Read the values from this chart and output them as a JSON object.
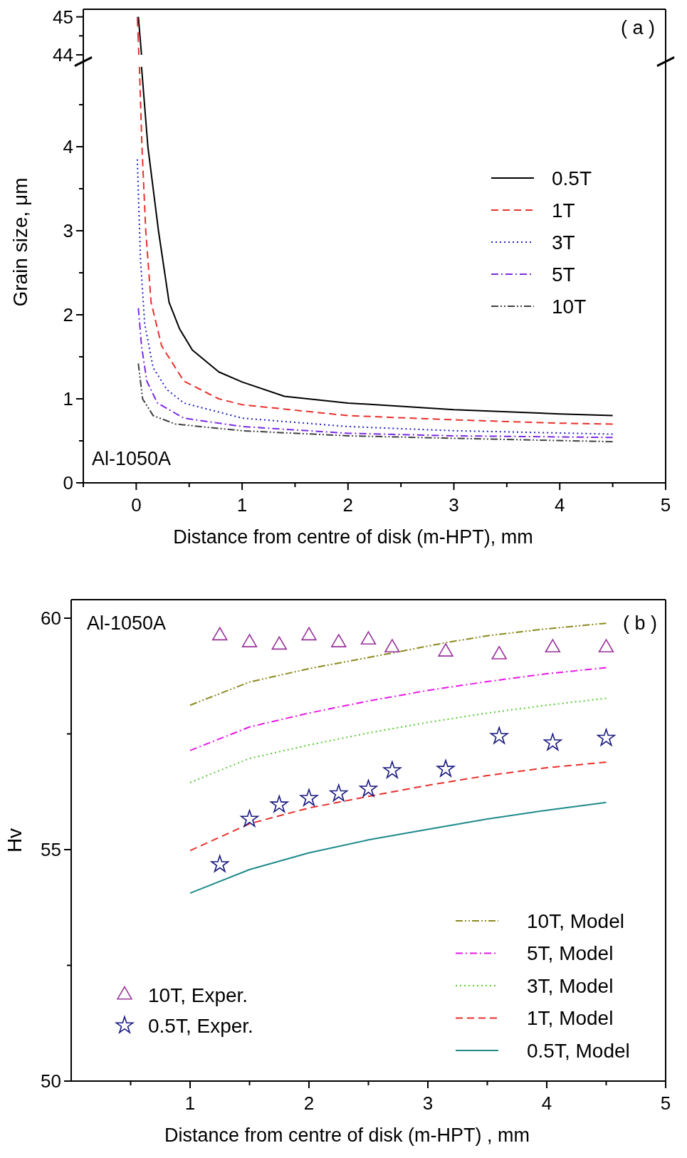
{
  "chart_data": [
    {
      "type": "line",
      "xlim": [
        -0.5,
        5
      ],
      "ylim": [
        43.85,
        45.2
      ],
      "yticks": [
        44,
        {
          "value": 44.5,
          "label": null
        },
        45
      ],
      "tick_labels": "y",
      "annotations": [
        "( a )"
      ],
      "series": [
        {
          "color": "#000000",
          "line_style": "solid",
          "x": [
            0.02,
            0.05
          ],
          "values": [
            45,
            44
          ]
        },
        {
          "color": "#e8312d",
          "line_style": "dashed",
          "x": [
            0.01,
            0.025
          ],
          "values": [
            45,
            44
          ]
        }
      ]
    },
    {
      "type": "line",
      "xlim": [
        -0.5,
        5
      ],
      "ylim": [
        0,
        5
      ],
      "xticks": [
        {
          "value": -0.5,
          "label": null
        },
        0,
        {
          "value": 0.5,
          "label": null
        },
        1,
        {
          "value": 1.5,
          "label": null
        },
        2,
        {
          "value": 2.5,
          "label": null
        },
        3,
        {
          "value": 3.5,
          "label": null
        },
        4,
        {
          "value": 4.5,
          "label": null
        },
        5
      ],
      "yticks": [
        0,
        {
          "value": 0.5,
          "label": null
        },
        1,
        {
          "value": 1.5,
          "label": null
        },
        2,
        {
          "value": 2.5,
          "label": null
        },
        3,
        {
          "value": 3.5,
          "label": null
        },
        4,
        {
          "value": 4.5,
          "label": null
        }
      ],
      "xlabel": "Distance from centre of disk (m-HPT), mm",
      "ylabel": "Grain size, μm",
      "legend": "top right",
      "annotations": [
        "Al-1050A"
      ],
      "series": [
        {
          "name": "0.5T",
          "color": "#000000",
          "line_style": "solid",
          "x": [
            0.05,
            0.11,
            0.21,
            0.31,
            0.41,
            0.53,
            0.78,
            1,
            1.4,
            2,
            3,
            4,
            4.5
          ],
          "values": [
            4.95,
            4,
            3,
            2.15,
            1.83,
            1.58,
            1.32,
            1.2,
            1.03,
            0.95,
            0.87,
            0.82,
            0.8
          ]
        },
        {
          "name": "1T",
          "color": "#e8312d",
          "line_style": "dashed",
          "x": [
            0.03,
            0.054,
            0.09,
            0.14,
            0.24,
            0.45,
            0.78,
            1,
            2,
            3,
            4,
            4.5
          ],
          "values": [
            4.95,
            4,
            3,
            2.15,
            1.63,
            1.21,
            1,
            0.93,
            0.8,
            0.75,
            0.71,
            0.7
          ]
        },
        {
          "name": "3T",
          "color": "#2020c0",
          "line_style": "dotted",
          "x": [
            0.01,
            0.04,
            0.08,
            0.16,
            0.29,
            0.45,
            1,
            2,
            3,
            4.5
          ],
          "values": [
            3.85,
            2.66,
            1.89,
            1.37,
            1.11,
            0.95,
            0.77,
            0.67,
            0.62,
            0.58
          ]
        },
        {
          "name": "5T",
          "color": "#7a2be2",
          "line_style": "dashdot",
          "x": [
            0.02,
            0.05,
            0.1,
            0.2,
            0.45,
            1,
            2,
            3,
            4.5
          ],
          "values": [
            2.08,
            1.63,
            1.21,
            0.95,
            0.77,
            0.67,
            0.59,
            0.56,
            0.54
          ]
        },
        {
          "name": "10T",
          "color": "#404040",
          "line_style": "dashdotdot",
          "x": [
            0.02,
            0.06,
            0.16,
            0.37,
            1,
            2,
            3,
            4.5
          ],
          "values": [
            1.42,
            1,
            0.8,
            0.7,
            0.62,
            0.56,
            0.53,
            0.49
          ]
        }
      ]
    },
    {
      "type": "line",
      "xlim": [
        0,
        5
      ],
      "ylim": [
        50,
        60.4
      ],
      "xticks": [
        {
          "value": 0.5,
          "label": null
        },
        1,
        {
          "value": 1.5,
          "label": null
        },
        2,
        {
          "value": 2.5,
          "label": null
        },
        3,
        {
          "value": 3.5,
          "label": null
        },
        4,
        {
          "value": 4.5,
          "label": null
        },
        5
      ],
      "yticks": [
        50,
        {
          "value": 52.5,
          "label": null
        },
        55,
        {
          "value": 57.5,
          "label": null
        },
        60
      ],
      "xlabel": "Distance from centre of disk (m-HPT) , mm",
      "ylabel": "Hv",
      "legend": "bottom right",
      "annotations": [
        "Al-1050A",
        "( b )"
      ],
      "series": [
        {
          "name": "10T, Model",
          "color": "#8c8a1e",
          "line_style": "dashdotdot",
          "x": [
            1,
            1.5,
            2,
            2.5,
            3.15,
            3.5,
            4,
            4.5
          ],
          "values": [
            58.12,
            58.62,
            58.91,
            59.15,
            59.47,
            59.62,
            59.77,
            59.89
          ]
        },
        {
          "name": "5T, Model",
          "color": "#e619e6",
          "line_style": "dashdot",
          "x": [
            1,
            1.5,
            2,
            2.5,
            3,
            3.5,
            4,
            4.5
          ],
          "values": [
            57.14,
            57.65,
            57.95,
            58.21,
            58.44,
            58.63,
            58.8,
            58.93
          ]
        },
        {
          "name": "3T, Model",
          "color": "#55cc33",
          "line_style": "dotted",
          "x": [
            1,
            1.5,
            2,
            2.5,
            3,
            3.5,
            4,
            4.5
          ],
          "values": [
            56.45,
            56.97,
            57.26,
            57.52,
            57.75,
            57.95,
            58.12,
            58.27
          ]
        },
        {
          "name": "1T, Model",
          "color": "#e8312d",
          "line_style": "dashed",
          "x": [
            1,
            1.5,
            2,
            2.5,
            3,
            3.5,
            4,
            4.5
          ],
          "values": [
            54.98,
            55.56,
            55.9,
            56.15,
            56.39,
            56.6,
            56.77,
            56.89
          ]
        },
        {
          "name": "0.5T, Model",
          "color": "#1f8a8a",
          "line_style": "solid",
          "x": [
            1,
            1.5,
            2,
            2.5,
            3,
            3.5,
            4,
            4.5
          ],
          "values": [
            54.06,
            54.57,
            54.93,
            55.21,
            55.44,
            55.66,
            55.85,
            56.02
          ]
        },
        {
          "name": "10T, Exper.",
          "type": "scatter",
          "marker": "triangle",
          "color": "#993399",
          "x": [
            1.25,
            1.5,
            1.75,
            2,
            2.25,
            2.5,
            2.7,
            3.15,
            3.6,
            4.05,
            4.5
          ],
          "values": [
            59.62,
            59.47,
            59.42,
            59.62,
            59.47,
            59.53,
            59.36,
            59.27,
            59.21,
            59.36,
            59.36
          ]
        },
        {
          "name": "0.5T, Exper.",
          "type": "scatter",
          "marker": "star",
          "color": "#1a1a80",
          "x": [
            1.25,
            1.5,
            1.75,
            2,
            2.25,
            2.5,
            2.7,
            3.15,
            3.6,
            4.05,
            4.5
          ],
          "values": [
            54.68,
            55.66,
            55.97,
            56.11,
            56.21,
            56.31,
            56.71,
            56.74,
            57.45,
            57.31,
            57.41
          ]
        }
      ]
    }
  ]
}
